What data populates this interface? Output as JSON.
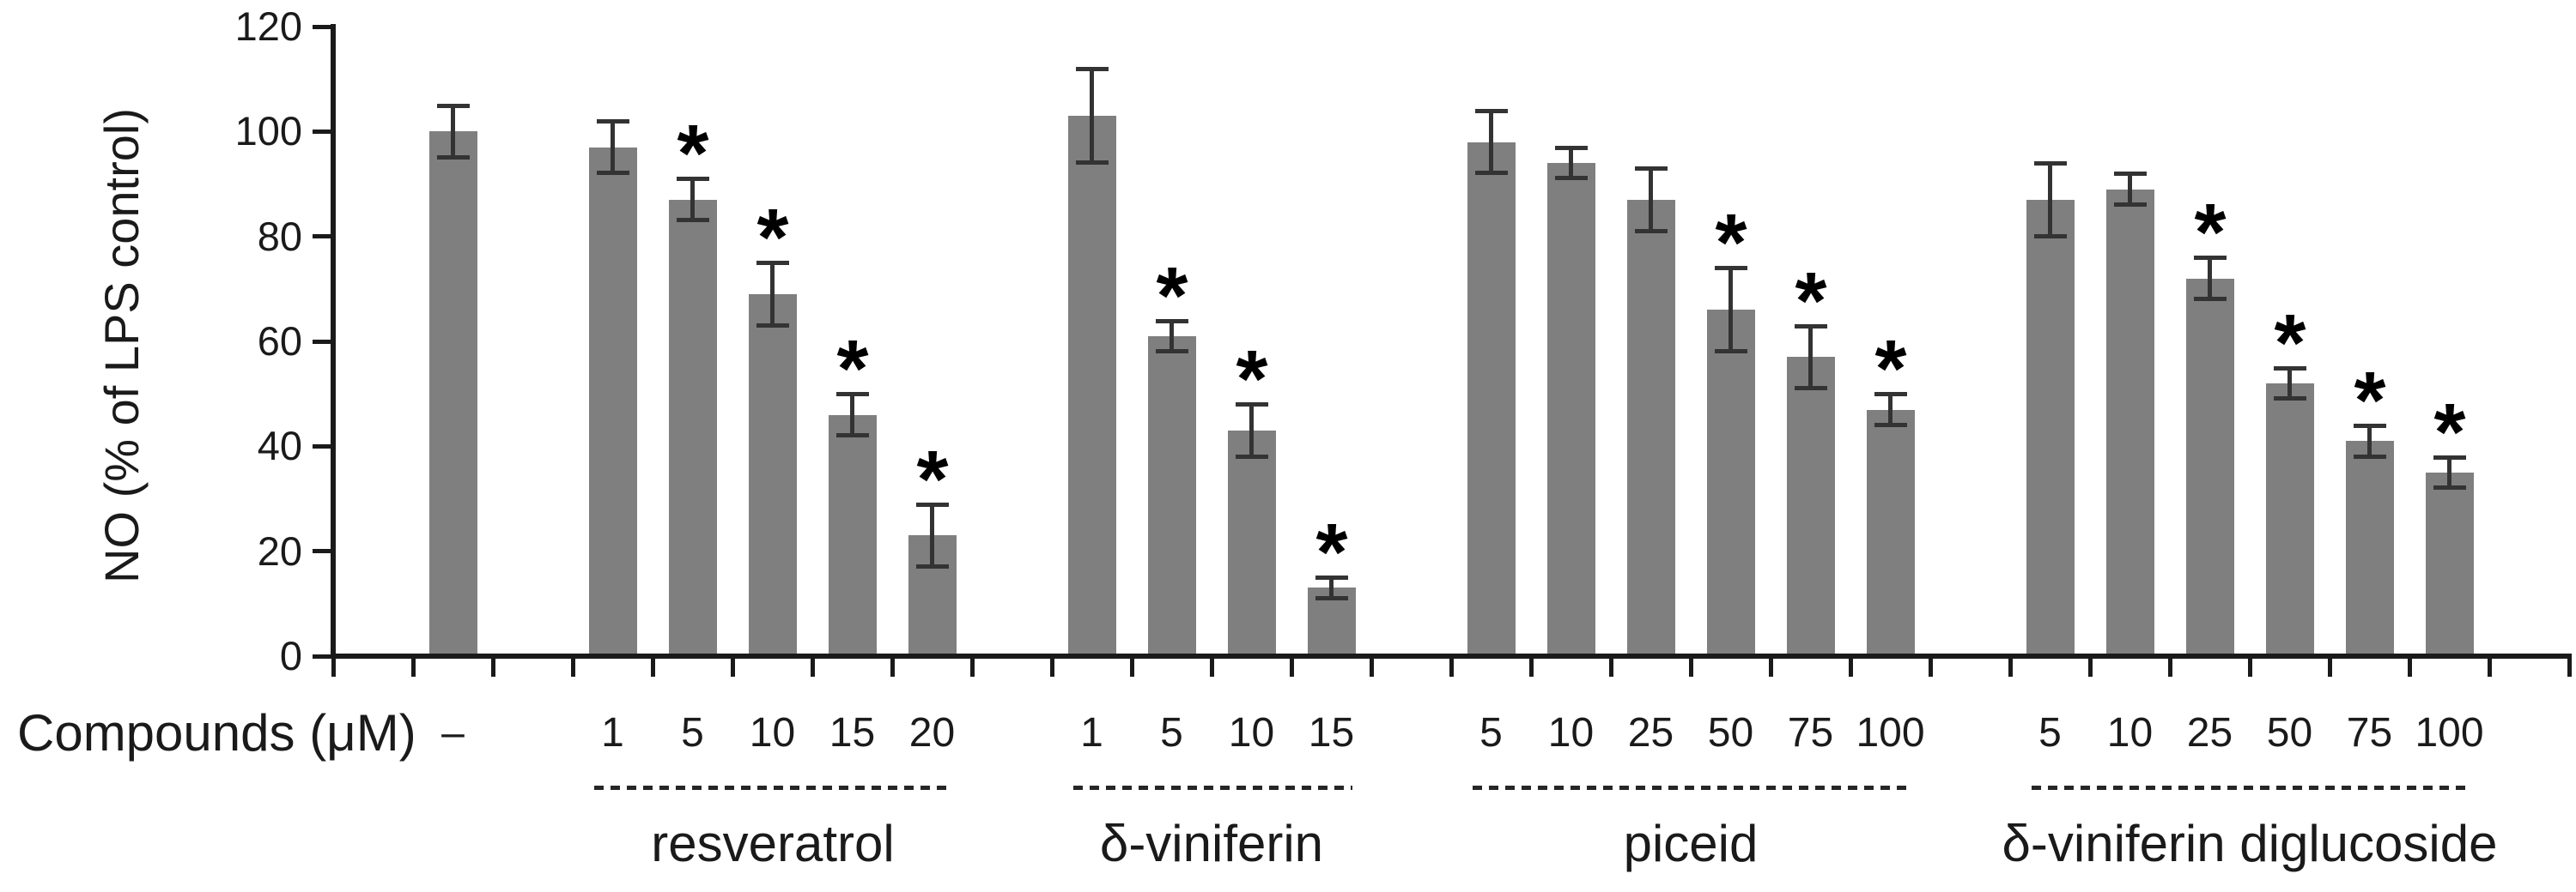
{
  "figure": {
    "background_color": "#ffffff",
    "axis_color": "#1a1a1a",
    "bar_color": "#7f7f7f",
    "error_bar_color": "#333333",
    "text_color": "#1a1a1a",
    "significance_marker": "*"
  },
  "chart_data": {
    "type": "bar",
    "title": "",
    "ylabel": "NO (% of LPS control)",
    "xlabel": "Compounds (μM)",
    "ylim": [
      0,
      120
    ],
    "yticks": [
      0,
      20,
      40,
      60,
      80,
      100,
      120
    ],
    "grid": false,
    "legend": "none",
    "error_bars": true,
    "groups": [
      {
        "name": "",
        "underline": false,
        "bars": [
          {
            "label": "–",
            "value": 100,
            "error": 5,
            "significant": false
          }
        ]
      },
      {
        "name": "resveratrol",
        "underline": true,
        "bars": [
          {
            "label": "1",
            "value": 97,
            "error": 5,
            "significant": false
          },
          {
            "label": "5",
            "value": 87,
            "error": 4,
            "significant": true
          },
          {
            "label": "10",
            "value": 69,
            "error": 6,
            "significant": true
          },
          {
            "label": "15",
            "value": 46,
            "error": 4,
            "significant": true
          },
          {
            "label": "20",
            "value": 23,
            "error": 6,
            "significant": true
          }
        ]
      },
      {
        "name": "δ-viniferin",
        "underline": true,
        "bars": [
          {
            "label": "1",
            "value": 103,
            "error": 9,
            "significant": false
          },
          {
            "label": "5",
            "value": 61,
            "error": 3,
            "significant": true
          },
          {
            "label": "10",
            "value": 43,
            "error": 5,
            "significant": true
          },
          {
            "label": "15",
            "value": 13,
            "error": 2,
            "significant": true
          }
        ]
      },
      {
        "name": "piceid",
        "underline": true,
        "bars": [
          {
            "label": "5",
            "value": 98,
            "error": 6,
            "significant": false
          },
          {
            "label": "10",
            "value": 94,
            "error": 3,
            "significant": false
          },
          {
            "label": "25",
            "value": 87,
            "error": 6,
            "significant": false
          },
          {
            "label": "50",
            "value": 66,
            "error": 8,
            "significant": true
          },
          {
            "label": "75",
            "value": 57,
            "error": 6,
            "significant": true
          },
          {
            "label": "100",
            "value": 47,
            "error": 3,
            "significant": true
          }
        ]
      },
      {
        "name": "δ-viniferin diglucoside",
        "underline": true,
        "bars": [
          {
            "label": "5",
            "value": 87,
            "error": 7,
            "significant": false
          },
          {
            "label": "10",
            "value": 89,
            "error": 3,
            "significant": false
          },
          {
            "label": "25",
            "value": 72,
            "error": 4,
            "significant": true
          },
          {
            "label": "50",
            "value": 52,
            "error": 3,
            "significant": true
          },
          {
            "label": "75",
            "value": 41,
            "error": 3,
            "significant": true
          },
          {
            "label": "100",
            "value": 35,
            "error": 3,
            "significant": true
          }
        ]
      }
    ]
  }
}
